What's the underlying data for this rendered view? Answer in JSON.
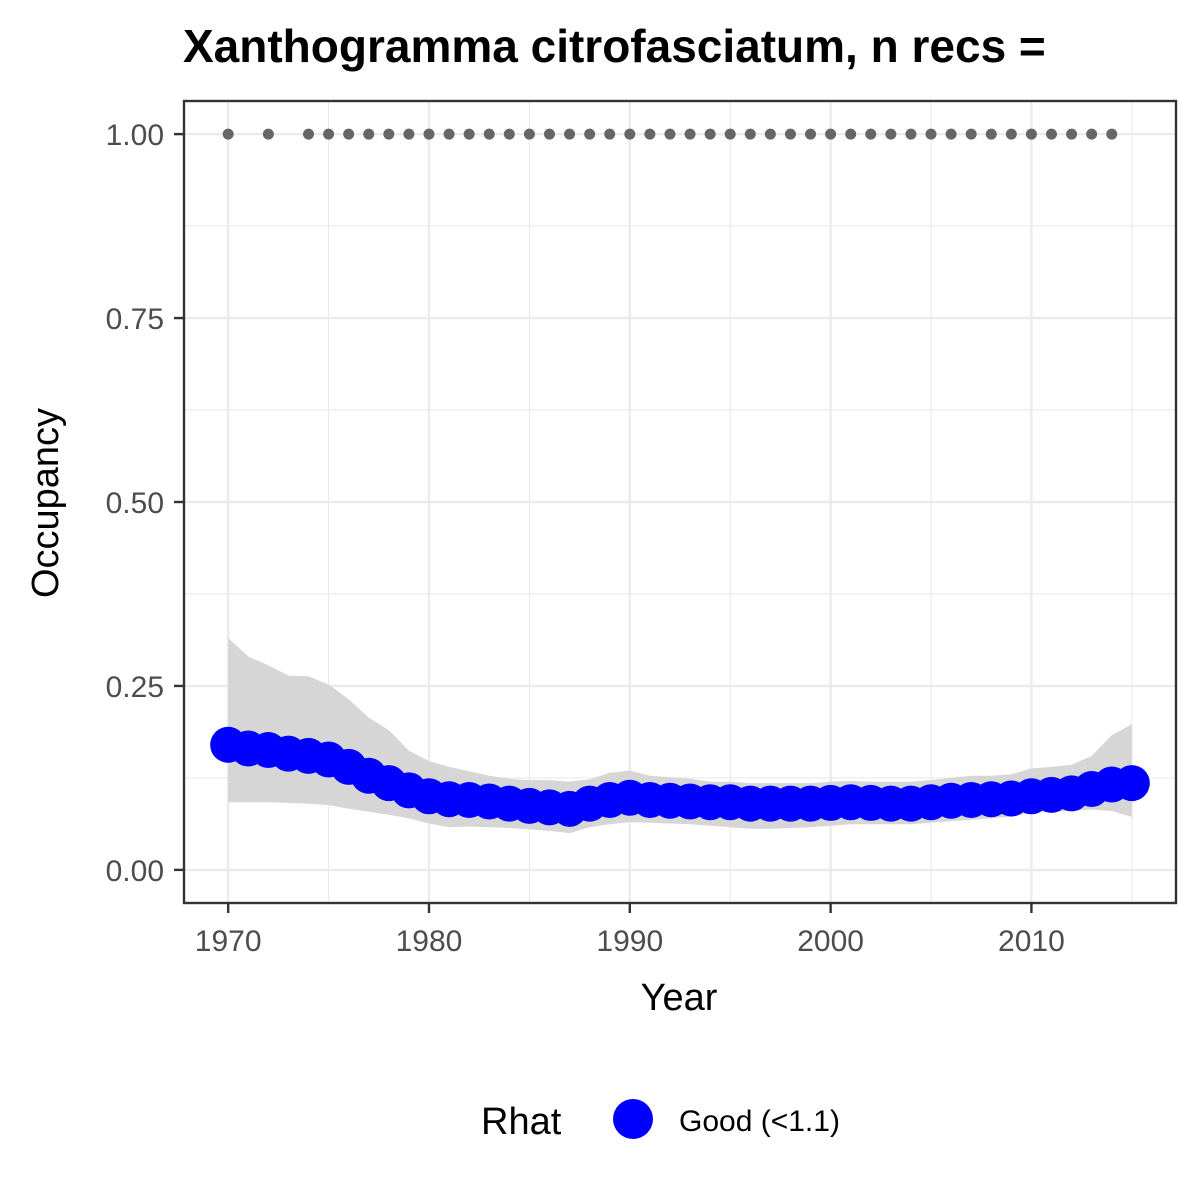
{
  "chart_data": {
    "type": "line",
    "title": "Xanthogramma citrofasciatum, n recs = ",
    "xlabel": "Year",
    "ylabel": "Occupancy",
    "xlim": [
      1967.8,
      2017.2
    ],
    "ylim": [
      -0.045,
      1.045
    ],
    "x_ticks": [
      1970,
      1980,
      1990,
      2000,
      2010
    ],
    "x_tick_labels": [
      "1970",
      "1980",
      "1990",
      "2000",
      "2010"
    ],
    "y_ticks": [
      0,
      0.25,
      0.5,
      0.75,
      1.0
    ],
    "y_tick_labels": [
      "0.00",
      "0.25",
      "0.50",
      "0.75",
      "1.00"
    ],
    "grid": true,
    "legend": {
      "title": "Rhat",
      "position": "bottom",
      "entries": [
        {
          "label": "Good (<1.1)",
          "color": "#0000ff"
        }
      ]
    },
    "colors": {
      "mean": "#0000ff",
      "ribbon": "#d6d6d6",
      "records": "#666666",
      "grid": "#ebebeb",
      "panel_border": "#333333"
    },
    "series": [
      {
        "name": "Good (<1.1)",
        "x": [
          1970,
          1971,
          1972,
          1973,
          1974,
          1975,
          1976,
          1977,
          1978,
          1979,
          1980,
          1981,
          1982,
          1983,
          1984,
          1985,
          1986,
          1987,
          1988,
          1989,
          1990,
          1991,
          1992,
          1993,
          1994,
          1995,
          1996,
          1997,
          1998,
          1999,
          2000,
          2001,
          2002,
          2003,
          2004,
          2005,
          2006,
          2007,
          2008,
          2009,
          2010,
          2011,
          2012,
          2013,
          2014,
          2015
        ],
        "y": [
          0.17,
          0.165,
          0.163,
          0.158,
          0.155,
          0.15,
          0.14,
          0.128,
          0.118,
          0.108,
          0.1,
          0.096,
          0.095,
          0.093,
          0.09,
          0.087,
          0.085,
          0.083,
          0.09,
          0.095,
          0.098,
          0.095,
          0.094,
          0.093,
          0.092,
          0.092,
          0.09,
          0.09,
          0.09,
          0.09,
          0.091,
          0.092,
          0.091,
          0.09,
          0.09,
          0.092,
          0.094,
          0.095,
          0.096,
          0.097,
          0.1,
          0.102,
          0.104,
          0.11,
          0.116,
          0.118
        ],
        "lower": [
          0.092,
          0.092,
          0.092,
          0.091,
          0.09,
          0.088,
          0.083,
          0.079,
          0.075,
          0.07,
          0.063,
          0.058,
          0.059,
          0.058,
          0.057,
          0.055,
          0.053,
          0.05,
          0.058,
          0.062,
          0.065,
          0.064,
          0.063,
          0.062,
          0.06,
          0.058,
          0.056,
          0.056,
          0.057,
          0.058,
          0.06,
          0.062,
          0.062,
          0.062,
          0.062,
          0.064,
          0.066,
          0.068,
          0.07,
          0.072,
          0.078,
          0.079,
          0.08,
          0.082,
          0.08,
          0.072
        ],
        "upper": [
          0.315,
          0.29,
          0.278,
          0.264,
          0.263,
          0.252,
          0.232,
          0.207,
          0.19,
          0.162,
          0.148,
          0.14,
          0.134,
          0.128,
          0.124,
          0.122,
          0.122,
          0.12,
          0.123,
          0.132,
          0.135,
          0.128,
          0.126,
          0.124,
          0.12,
          0.12,
          0.118,
          0.118,
          0.118,
          0.118,
          0.12,
          0.121,
          0.12,
          0.12,
          0.12,
          0.122,
          0.125,
          0.128,
          0.128,
          0.13,
          0.138,
          0.14,
          0.143,
          0.155,
          0.183,
          0.198
        ]
      },
      {
        "name": "records",
        "x": [
          1970,
          1972,
          1974,
          1975,
          1976,
          1977,
          1978,
          1979,
          1980,
          1981,
          1982,
          1983,
          1984,
          1985,
          1986,
          1987,
          1988,
          1989,
          1990,
          1991,
          1992,
          1993,
          1994,
          1995,
          1996,
          1997,
          1998,
          1999,
          2000,
          2001,
          2002,
          2003,
          2004,
          2005,
          2006,
          2007,
          2008,
          2009,
          2010,
          2011,
          2012,
          2013,
          2014
        ],
        "y": [
          1,
          1,
          1,
          1,
          1,
          1,
          1,
          1,
          1,
          1,
          1,
          1,
          1,
          1,
          1,
          1,
          1,
          1,
          1,
          1,
          1,
          1,
          1,
          1,
          1,
          1,
          1,
          1,
          1,
          1,
          1,
          1,
          1,
          1,
          1,
          1,
          1,
          1,
          1,
          1,
          1,
          1,
          1
        ]
      }
    ]
  }
}
